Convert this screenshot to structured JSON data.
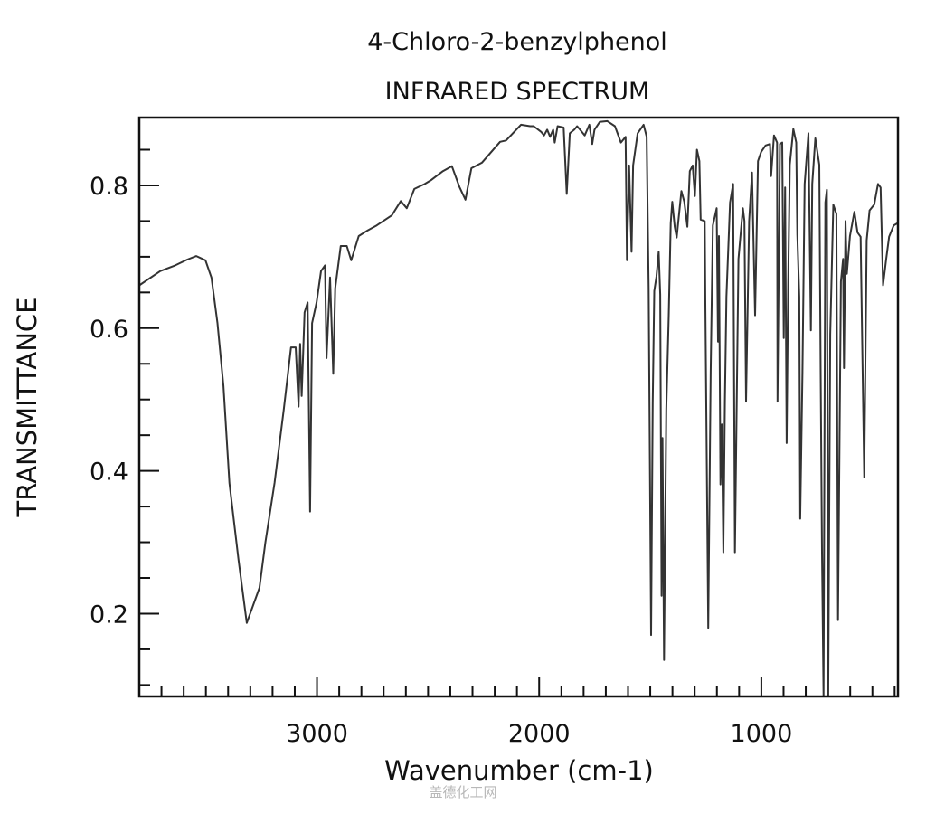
{
  "chart_data": {
    "type": "line",
    "title": "4-Chloro-2-benzylphenol",
    "subtitle": "INFRARED SPECTRUM",
    "xlabel": "Wavenumber (cm-1)",
    "ylabel": "TRANSMITTANCE",
    "xlim": [
      3800,
      385
    ],
    "ylim": [
      0.084,
      0.895
    ],
    "x_reversed": true,
    "x_ticks": [
      3000,
      2000,
      1000
    ],
    "x_tick_labels": [
      "3000",
      "2000",
      "1000"
    ],
    "y_ticks": [
      0.2,
      0.4,
      0.6,
      0.8
    ],
    "y_tick_labels": [
      "0.2",
      "0.4",
      "0.6",
      "0.8"
    ],
    "grid": false,
    "line_color": "#333333",
    "watermark": "盖德化工网",
    "series": [
      {
        "points": [
          [
            3800,
            0.66
          ],
          [
            3705,
            0.68
          ],
          [
            3638,
            0.688
          ],
          [
            3584,
            0.696
          ],
          [
            3543,
            0.701
          ],
          [
            3502,
            0.695
          ],
          [
            3475,
            0.671
          ],
          [
            3448,
            0.607
          ],
          [
            3421,
            0.519
          ],
          [
            3394,
            0.383
          ],
          [
            3353,
            0.275
          ],
          [
            3316,
            0.187
          ],
          [
            3259,
            0.236
          ],
          [
            3232,
            0.3
          ],
          [
            3191,
            0.383
          ],
          [
            3150,
            0.485
          ],
          [
            3117,
            0.573
          ],
          [
            3096,
            0.573
          ],
          [
            3083,
            0.49
          ],
          [
            3076,
            0.578
          ],
          [
            3069,
            0.505
          ],
          [
            3056,
            0.622
          ],
          [
            3042,
            0.636
          ],
          [
            3031,
            0.343
          ],
          [
            3022,
            0.607
          ],
          [
            3002,
            0.636
          ],
          [
            2982,
            0.68
          ],
          [
            2964,
            0.688
          ],
          [
            2957,
            0.558
          ],
          [
            2941,
            0.671
          ],
          [
            2927,
            0.536
          ],
          [
            2918,
            0.656
          ],
          [
            2893,
            0.715
          ],
          [
            2866,
            0.715
          ],
          [
            2846,
            0.695
          ],
          [
            2812,
            0.729
          ],
          [
            2772,
            0.737
          ],
          [
            2731,
            0.744
          ],
          [
            2663,
            0.758
          ],
          [
            2623,
            0.778
          ],
          [
            2596,
            0.768
          ],
          [
            2562,
            0.795
          ],
          [
            2515,
            0.802
          ],
          [
            2488,
            0.807
          ],
          [
            2433,
            0.82
          ],
          [
            2393,
            0.827
          ],
          [
            2359,
            0.798
          ],
          [
            2332,
            0.78
          ],
          [
            2305,
            0.824
          ],
          [
            2257,
            0.832
          ],
          [
            2176,
            0.861
          ],
          [
            2149,
            0.863
          ],
          [
            2082,
            0.885
          ],
          [
            2041,
            0.883
          ],
          [
            2025,
            0.883
          ],
          [
            1991,
            0.875
          ],
          [
            1978,
            0.87
          ],
          [
            1964,
            0.878
          ],
          [
            1951,
            0.868
          ],
          [
            1937,
            0.878
          ],
          [
            1930,
            0.86
          ],
          [
            1917,
            0.883
          ],
          [
            1890,
            0.881
          ],
          [
            1876,
            0.788
          ],
          [
            1862,
            0.873
          ],
          [
            1842,
            0.878
          ],
          [
            1829,
            0.883
          ],
          [
            1808,
            0.875
          ],
          [
            1795,
            0.87
          ],
          [
            1774,
            0.885
          ],
          [
            1761,
            0.858
          ],
          [
            1751,
            0.878
          ],
          [
            1727,
            0.889
          ],
          [
            1693,
            0.89
          ],
          [
            1659,
            0.883
          ],
          [
            1632,
            0.86
          ],
          [
            1611,
            0.868
          ],
          [
            1605,
            0.695
          ],
          [
            1595,
            0.828
          ],
          [
            1584,
            0.707
          ],
          [
            1577,
            0.828
          ],
          [
            1557,
            0.873
          ],
          [
            1530,
            0.885
          ],
          [
            1516,
            0.868
          ],
          [
            1507,
            0.657
          ],
          [
            1496,
            0.17
          ],
          [
            1489,
            0.496
          ],
          [
            1482,
            0.652
          ],
          [
            1472,
            0.672
          ],
          [
            1462,
            0.707
          ],
          [
            1455,
            0.647
          ],
          [
            1449,
            0.225
          ],
          [
            1445,
            0.446
          ],
          [
            1438,
            0.135
          ],
          [
            1428,
            0.486
          ],
          [
            1417,
            0.617
          ],
          [
            1408,
            0.747
          ],
          [
            1401,
            0.777
          ],
          [
            1390,
            0.742
          ],
          [
            1381,
            0.727
          ],
          [
            1360,
            0.792
          ],
          [
            1347,
            0.777
          ],
          [
            1333,
            0.742
          ],
          [
            1322,
            0.82
          ],
          [
            1309,
            0.828
          ],
          [
            1299,
            0.785
          ],
          [
            1290,
            0.85
          ],
          [
            1279,
            0.834
          ],
          [
            1273,
            0.752
          ],
          [
            1255,
            0.75
          ],
          [
            1252,
            0.634
          ],
          [
            1239,
            0.18
          ],
          [
            1228,
            0.539
          ],
          [
            1218,
            0.744
          ],
          [
            1201,
            0.768
          ],
          [
            1195,
            0.581
          ],
          [
            1191,
            0.729
          ],
          [
            1184,
            0.381
          ],
          [
            1178,
            0.465
          ],
          [
            1171,
            0.286
          ],
          [
            1164,
            0.497
          ],
          [
            1157,
            0.644
          ],
          [
            1141,
            0.776
          ],
          [
            1127,
            0.802
          ],
          [
            1119,
            0.286
          ],
          [
            1103,
            0.697
          ],
          [
            1083,
            0.768
          ],
          [
            1076,
            0.75
          ],
          [
            1069,
            0.497
          ],
          [
            1055,
            0.75
          ],
          [
            1042,
            0.818
          ],
          [
            1028,
            0.618
          ],
          [
            1015,
            0.834
          ],
          [
            1001,
            0.847
          ],
          [
            981,
            0.856
          ],
          [
            961,
            0.858
          ],
          [
            956,
            0.813
          ],
          [
            943,
            0.87
          ],
          [
            929,
            0.86
          ],
          [
            927,
            0.497
          ],
          [
            916,
            0.858
          ],
          [
            906,
            0.86
          ],
          [
            899,
            0.586
          ],
          [
            893,
            0.797
          ],
          [
            886,
            0.439
          ],
          [
            879,
            0.66
          ],
          [
            872,
            0.829
          ],
          [
            856,
            0.879
          ],
          [
            843,
            0.86
          ],
          [
            838,
            0.731
          ],
          [
            829,
            0.644
          ],
          [
            825,
            0.333
          ],
          [
            815,
            0.539
          ],
          [
            805,
            0.802
          ],
          [
            788,
            0.873
          ],
          [
            777,
            0.597
          ],
          [
            771,
            0.802
          ],
          [
            757,
            0.866
          ],
          [
            739,
            0.829
          ],
          [
            733,
            0.539
          ],
          [
            727,
            0.286
          ],
          [
            720,
            0.085
          ],
          [
            712,
            0.776
          ],
          [
            705,
            0.794
          ],
          [
            699,
            0.085
          ],
          [
            690,
            0.591
          ],
          [
            676,
            0.773
          ],
          [
            662,
            0.76
          ],
          [
            655,
            0.191
          ],
          [
            642,
            0.665
          ],
          [
            632,
            0.697
          ],
          [
            628,
            0.544
          ],
          [
            621,
            0.75
          ],
          [
            615,
            0.676
          ],
          [
            601,
            0.729
          ],
          [
            581,
            0.763
          ],
          [
            567,
            0.734
          ],
          [
            553,
            0.728
          ],
          [
            537,
            0.391
          ],
          [
            526,
            0.723
          ],
          [
            513,
            0.765
          ],
          [
            492,
            0.773
          ],
          [
            475,
            0.802
          ],
          [
            463,
            0.797
          ],
          [
            452,
            0.66
          ],
          [
            438,
            0.697
          ],
          [
            425,
            0.728
          ],
          [
            404,
            0.744
          ],
          [
            387,
            0.747
          ]
        ]
      }
    ]
  }
}
